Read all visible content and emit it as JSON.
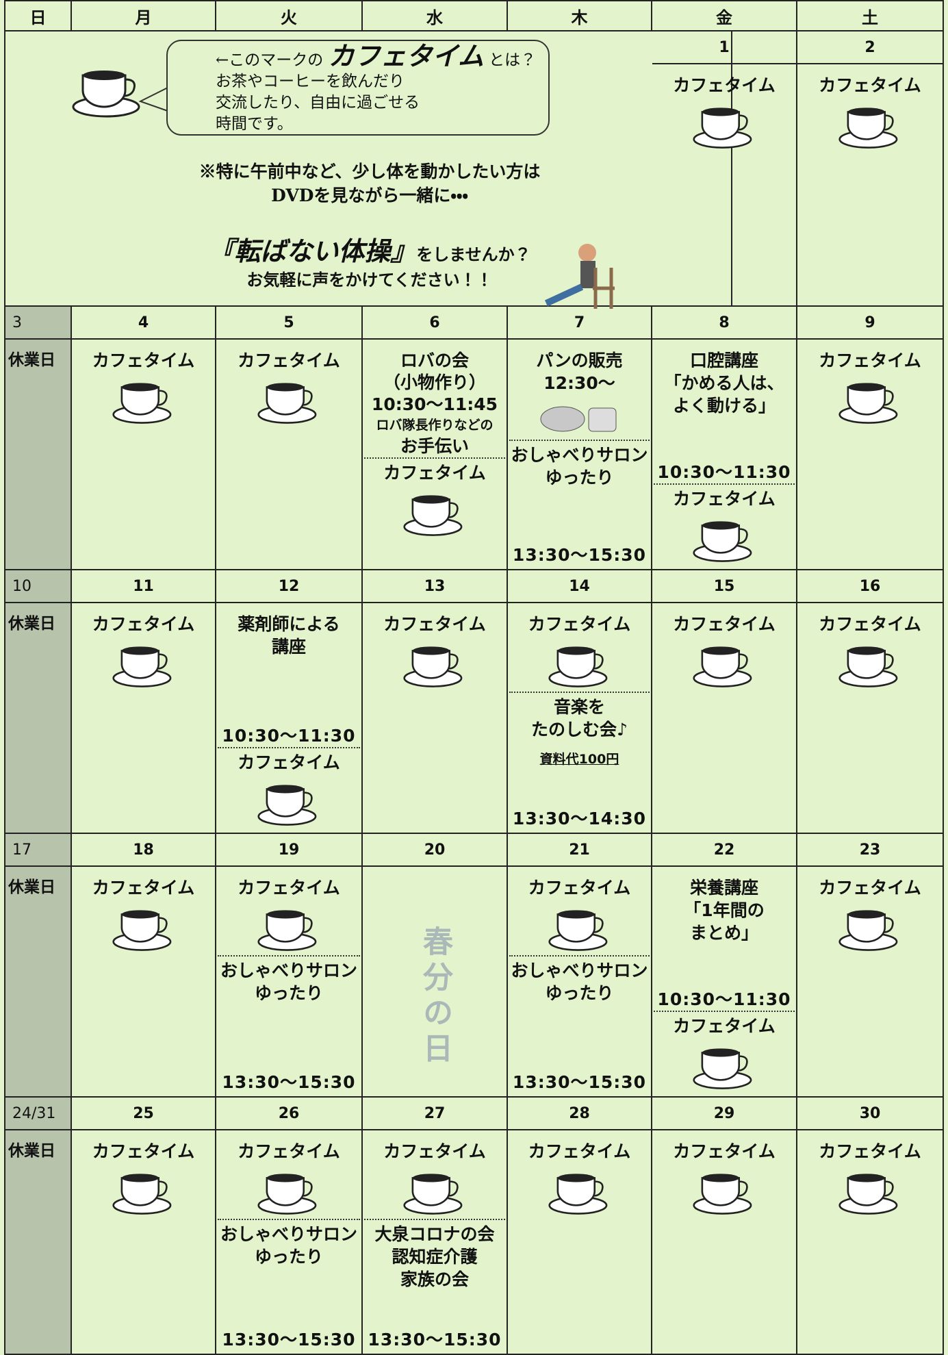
{
  "header": {
    "days": [
      "日",
      "月",
      "火",
      "水",
      "木",
      "金",
      "土"
    ]
  },
  "intro": {
    "mark_lead": "←このマークの",
    "mark_name": "カフェタイム",
    "mark_tail": "とは？",
    "lines": [
      "お茶やコーヒーを飲んだり",
      "交流したり、自由に過ごせる",
      "時間です。"
    ],
    "note": [
      "※特に午前中など、少し体を動かしたい方は",
      "DVDを見ながら一緒に・・・"
    ],
    "exercise_name": "『転ばない体操』",
    "exercise_tail": "をしませんか？",
    "invite": "お気軽に声をかけてください！！"
  },
  "weeks": [
    {
      "cells": [
        {
          "date": "1",
          "blocks": [
            {
              "lines": [
                "カフェタイム"
              ]
            }
          ]
        },
        {
          "date": "2",
          "blocks": [
            {
              "lines": [
                "カフェタイム"
              ]
            }
          ]
        }
      ]
    },
    {
      "cells": [
        {
          "date": "3",
          "blocks": [
            {
              "lines": [
                "休業日"
              ]
            }
          ]
        },
        {
          "date": "4",
          "blocks": [
            {
              "lines": [
                "カフェタイム"
              ]
            }
          ]
        },
        {
          "date": "5",
          "blocks": [
            {
              "lines": [
                "カフェタイム"
              ]
            }
          ]
        },
        {
          "date": "6",
          "blocks": [
            {
              "lines": [
                "ロバの会",
                "（小物作り）",
                "10:30～11:45",
                "ロバ隊長作りなどの",
                "お手伝い"
              ]
            },
            {
              "lines": [
                "カフェタイム"
              ]
            }
          ]
        },
        {
          "date": "7",
          "blocks": [
            {
              "lines": [
                "パンの販売",
                "12:30～"
              ]
            },
            {
              "lines": [
                "おしゃべりサロン",
                "ゆったり"
              ],
              "time": "13:30～15:30"
            }
          ]
        },
        {
          "date": "8",
          "blocks": [
            {
              "lines": [
                "口腔講座",
                "「かめる人は、",
                "よく動ける」"
              ],
              "time": "10:30～11:30"
            },
            {
              "lines": [
                "カフェタイム"
              ]
            }
          ]
        },
        {
          "date": "9",
          "blocks": [
            {
              "lines": [
                "カフェタイム"
              ]
            }
          ]
        }
      ]
    },
    {
      "cells": [
        {
          "date": "10",
          "blocks": [
            {
              "lines": [
                "休業日"
              ]
            }
          ]
        },
        {
          "date": "11",
          "blocks": [
            {
              "lines": [
                "カフェタイム"
              ]
            }
          ]
        },
        {
          "date": "12",
          "blocks": [
            {
              "lines": [
                "薬剤師による",
                "講座"
              ],
              "time": "10:30～11:30"
            },
            {
              "lines": [
                "カフェタイム"
              ]
            }
          ]
        },
        {
          "date": "13",
          "blocks": [
            {
              "lines": [
                "カフェタイム"
              ]
            }
          ]
        },
        {
          "date": "14",
          "blocks": [
            {
              "lines": [
                "カフェタイム"
              ]
            },
            {
              "lines": [
                "音楽を",
                "たのしむ会♪"
              ],
              "fee": "資料代100円",
              "time": "13:30～14:30"
            }
          ]
        },
        {
          "date": "15",
          "blocks": [
            {
              "lines": [
                "カフェタイム"
              ]
            }
          ]
        },
        {
          "date": "16",
          "blocks": [
            {
              "lines": [
                "カフェタイム"
              ]
            }
          ]
        }
      ]
    },
    {
      "cells": [
        {
          "date": "17",
          "blocks": [
            {
              "lines": [
                "休業日"
              ]
            }
          ]
        },
        {
          "date": "18",
          "blocks": [
            {
              "lines": [
                "カフェタイム"
              ]
            }
          ]
        },
        {
          "date": "19",
          "blocks": [
            {
              "lines": [
                "カフェタイム"
              ]
            },
            {
              "lines": [
                "おしゃべりサロン",
                "ゆったり"
              ],
              "time": "13:30～15:30"
            }
          ]
        },
        {
          "date": "20",
          "holiday": "春分の日",
          "blocks": []
        },
        {
          "date": "21",
          "blocks": [
            {
              "lines": [
                "カフェタイム"
              ]
            },
            {
              "lines": [
                "おしゃべりサロン",
                "ゆったり"
              ],
              "time": "13:30～15:30"
            }
          ]
        },
        {
          "date": "22",
          "blocks": [
            {
              "lines": [
                "栄養講座",
                "「1年間の",
                "まとめ」"
              ],
              "time": "10:30～11:30"
            },
            {
              "lines": [
                "カフェタイム"
              ]
            }
          ]
        },
        {
          "date": "23",
          "blocks": [
            {
              "lines": [
                "カフェタイム"
              ]
            }
          ]
        }
      ]
    },
    {
      "cells": [
        {
          "date": "24/31",
          "blocks": [
            {
              "lines": [
                "休業日"
              ]
            }
          ]
        },
        {
          "date": "25",
          "blocks": [
            {
              "lines": [
                "カフェタイム"
              ]
            }
          ]
        },
        {
          "date": "26",
          "blocks": [
            {
              "lines": [
                "カフェタイム"
              ]
            },
            {
              "lines": [
                "おしゃべりサロン",
                "ゆったり"
              ],
              "time": "13:30～15:30"
            }
          ]
        },
        {
          "date": "27",
          "blocks": [
            {
              "lines": [
                "カフェタイム"
              ]
            },
            {
              "lines": [
                "大泉コロナの会",
                "認知症介護",
                "家族の会"
              ],
              "time": "13:30～15:30"
            }
          ]
        },
        {
          "date": "28",
          "blocks": [
            {
              "lines": [
                "カフェタイム"
              ]
            }
          ]
        },
        {
          "date": "29",
          "blocks": [
            {
              "lines": [
                "カフェタイム"
              ]
            }
          ]
        },
        {
          "date": "30",
          "blocks": [
            {
              "lines": [
                "カフェタイム"
              ]
            }
          ]
        }
      ]
    }
  ]
}
